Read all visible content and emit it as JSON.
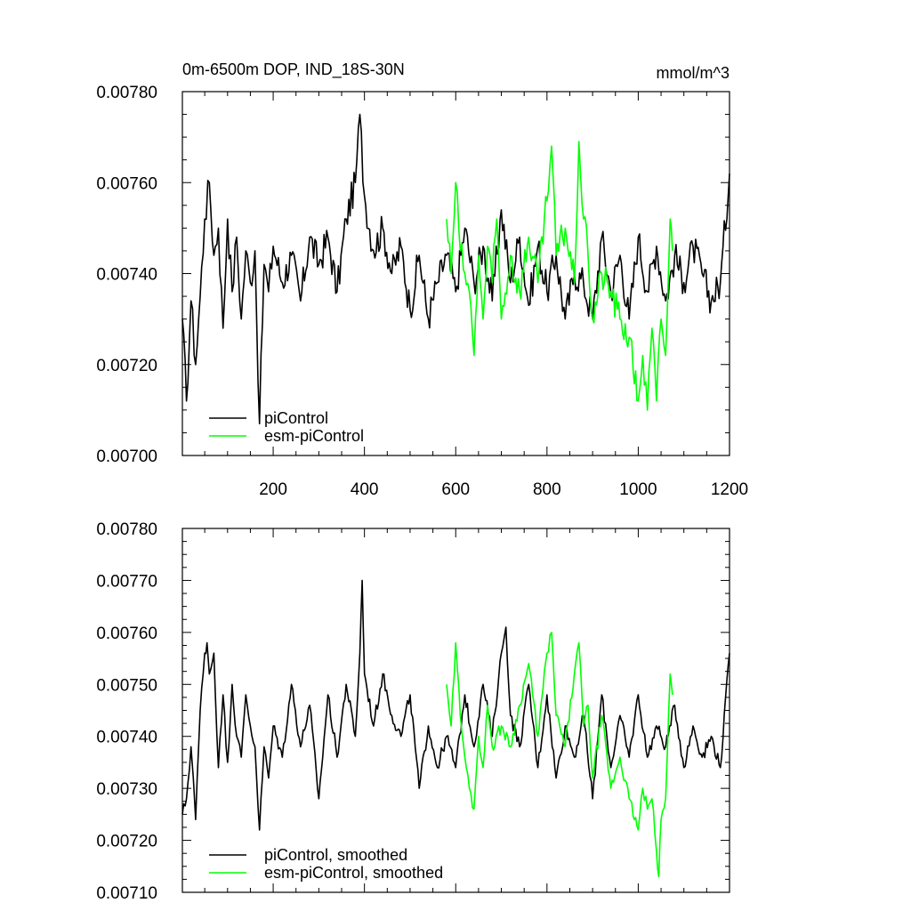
{
  "figure": {
    "title": "0m-6500m DOP, IND_18S-30N",
    "units": "mmol/m^3"
  },
  "chart_data": [
    {
      "type": "line",
      "title": "0m-6500m DOP, IND_18S-30N",
      "units_label": "mmol/m^3",
      "xlabel": "",
      "ylabel": "",
      "xlim": [
        1,
        1200
      ],
      "ylim": [
        0.007,
        0.0078
      ],
      "x_ticks": [
        200,
        400,
        600,
        800,
        1000,
        1200
      ],
      "x_tick_labels": [
        "200",
        "400",
        "600",
        "800",
        "1000",
        "1200"
      ],
      "y_ticks": [
        0.007,
        0.0072,
        0.0074,
        0.0076,
        0.0078
      ],
      "y_tick_labels": [
        "0.00700",
        "0.00720",
        "0.00740",
        "0.00760",
        "0.00780"
      ],
      "legend": [
        "piControl",
        "esm-piControl"
      ],
      "legend_position": "bottom-left",
      "series": [
        {
          "name": "piControl",
          "color": "#000000",
          "x": [
            1,
            10,
            20,
            30,
            40,
            50,
            60,
            70,
            80,
            90,
            100,
            110,
            120,
            130,
            140,
            150,
            160,
            170,
            180,
            190,
            200,
            220,
            240,
            260,
            280,
            300,
            320,
            340,
            360,
            380,
            390,
            400,
            420,
            440,
            460,
            480,
            500,
            520,
            540,
            560,
            580,
            600,
            620,
            640,
            660,
            680,
            700,
            720,
            740,
            760,
            780,
            800,
            820,
            840,
            860,
            880,
            900,
            920,
            940,
            960,
            980,
            1000,
            1020,
            1040,
            1060,
            1080,
            1100,
            1120,
            1140,
            1160,
            1180,
            1200
          ],
          "values": [
            0.0073,
            0.00712,
            0.00734,
            0.0072,
            0.00735,
            0.00752,
            0.0076,
            0.00744,
            0.0075,
            0.00728,
            0.00752,
            0.00736,
            0.00748,
            0.0073,
            0.00745,
            0.00738,
            0.00745,
            0.00707,
            0.00742,
            0.00736,
            0.00746,
            0.00738,
            0.00744,
            0.00734,
            0.00748,
            0.00742,
            0.00748,
            0.00736,
            0.00752,
            0.0076,
            0.00775,
            0.00757,
            0.00745,
            0.0075,
            0.0074,
            0.00746,
            0.00732,
            0.00744,
            0.0073,
            0.00738,
            0.00744,
            0.00736,
            0.0075,
            0.00738,
            0.00746,
            0.00734,
            0.00754,
            0.00738,
            0.00748,
            0.00733,
            0.00746,
            0.00736,
            0.00744,
            0.0073,
            0.0074,
            0.00738,
            0.0073,
            0.00748,
            0.00736,
            0.00744,
            0.0073,
            0.00748,
            0.00736,
            0.00746,
            0.00734,
            0.00744,
            0.00738,
            0.00746,
            0.0074,
            0.00734,
            0.00738,
            0.00762
          ]
        },
        {
          "name": "esm-piControl",
          "color": "#00ff00",
          "x": [
            580,
            590,
            600,
            610,
            620,
            630,
            640,
            650,
            660,
            670,
            680,
            690,
            700,
            720,
            740,
            760,
            780,
            800,
            810,
            820,
            840,
            860,
            870,
            880,
            890,
            900,
            920,
            940,
            960,
            980,
            1000,
            1010,
            1020,
            1030,
            1040,
            1050,
            1060,
            1070,
            1075
          ],
          "values": [
            0.00752,
            0.0074,
            0.0076,
            0.00745,
            0.0074,
            0.00736,
            0.00722,
            0.00744,
            0.0073,
            0.00746,
            0.00738,
            0.00752,
            0.0073,
            0.00744,
            0.00736,
            0.00748,
            0.00738,
            0.00756,
            0.00768,
            0.00744,
            0.0075,
            0.00738,
            0.00769,
            0.00752,
            0.00744,
            0.0073,
            0.0074,
            0.00736,
            0.0073,
            0.00726,
            0.00712,
            0.00722,
            0.0071,
            0.00728,
            0.00712,
            0.0073,
            0.00722,
            0.00752,
            0.00745
          ]
        }
      ]
    },
    {
      "type": "line",
      "title": "",
      "xlabel": "",
      "ylabel": "",
      "xlim": [
        1,
        1200
      ],
      "ylim": [
        0.0071,
        0.0078
      ],
      "x_ticks": [
        200,
        400,
        600,
        800,
        1000,
        1200
      ],
      "x_tick_labels": [],
      "y_ticks": [
        0.0071,
        0.0072,
        0.0073,
        0.0074,
        0.0075,
        0.0076,
        0.0077,
        0.0078
      ],
      "y_tick_labels": [
        "0.00710",
        "0.00720",
        "0.00730",
        "0.00740",
        "0.00750",
        "0.00760",
        "0.00770",
        "0.00780"
      ],
      "legend": [
        "piControl, smoothed",
        "esm-piControl, smoothed"
      ],
      "legend_position": "bottom-left",
      "series": [
        {
          "name": "piControl, smoothed",
          "color": "#000000",
          "x": [
            1,
            10,
            20,
            25,
            30,
            40,
            50,
            55,
            60,
            70,
            80,
            90,
            100,
            110,
            120,
            130,
            140,
            150,
            160,
            170,
            180,
            190,
            200,
            220,
            240,
            260,
            280,
            300,
            320,
            340,
            360,
            380,
            390,
            395,
            400,
            420,
            440,
            460,
            480,
            500,
            520,
            540,
            560,
            580,
            600,
            620,
            640,
            660,
            680,
            700,
            710,
            720,
            740,
            760,
            780,
            800,
            820,
            840,
            860,
            880,
            900,
            920,
            940,
            960,
            980,
            1000,
            1020,
            1040,
            1060,
            1080,
            1100,
            1120,
            1140,
            1160,
            1180,
            1200
          ],
          "values": [
            0.00725,
            0.00728,
            0.00738,
            0.00732,
            0.00724,
            0.00745,
            0.00756,
            0.00758,
            0.00752,
            0.00756,
            0.00734,
            0.00748,
            0.00735,
            0.0075,
            0.0074,
            0.00736,
            0.00748,
            0.00742,
            0.00738,
            0.00722,
            0.00738,
            0.00732,
            0.00742,
            0.00736,
            0.0075,
            0.00738,
            0.00746,
            0.00728,
            0.00748,
            0.00736,
            0.0075,
            0.0074,
            0.00756,
            0.0077,
            0.00752,
            0.00742,
            0.00752,
            0.00744,
            0.0074,
            0.00748,
            0.0073,
            0.00742,
            0.00734,
            0.0074,
            0.00734,
            0.00748,
            0.00738,
            0.0075,
            0.0074,
            0.00756,
            0.00761,
            0.00744,
            0.00738,
            0.0075,
            0.00734,
            0.00748,
            0.00732,
            0.00742,
            0.00736,
            0.00744,
            0.00728,
            0.00748,
            0.00734,
            0.00744,
            0.00736,
            0.00748,
            0.00736,
            0.00742,
            0.00738,
            0.00746,
            0.00734,
            0.00742,
            0.00736,
            0.0074,
            0.00734,
            0.00756
          ]
        },
        {
          "name": "esm-piControl, smoothed",
          "color": "#00ff00",
          "x": [
            580,
            590,
            600,
            610,
            620,
            630,
            640,
            650,
            660,
            670,
            680,
            700,
            720,
            740,
            760,
            780,
            800,
            810,
            820,
            840,
            860,
            870,
            880,
            890,
            900,
            920,
            940,
            960,
            980,
            1000,
            1010,
            1020,
            1030,
            1040,
            1045,
            1050,
            1060,
            1070,
            1075
          ],
          "values": [
            0.0075,
            0.00742,
            0.00758,
            0.00744,
            0.00736,
            0.0073,
            0.00726,
            0.0074,
            0.00734,
            0.00746,
            0.00738,
            0.00742,
            0.00738,
            0.00746,
            0.00754,
            0.0074,
            0.00756,
            0.0076,
            0.00744,
            0.00738,
            0.00752,
            0.00758,
            0.00742,
            0.00746,
            0.00732,
            0.00744,
            0.0073,
            0.00736,
            0.00728,
            0.00722,
            0.0073,
            0.00726,
            0.00728,
            0.00718,
            0.00713,
            0.00724,
            0.00728,
            0.00752,
            0.00748
          ]
        }
      ]
    }
  ]
}
